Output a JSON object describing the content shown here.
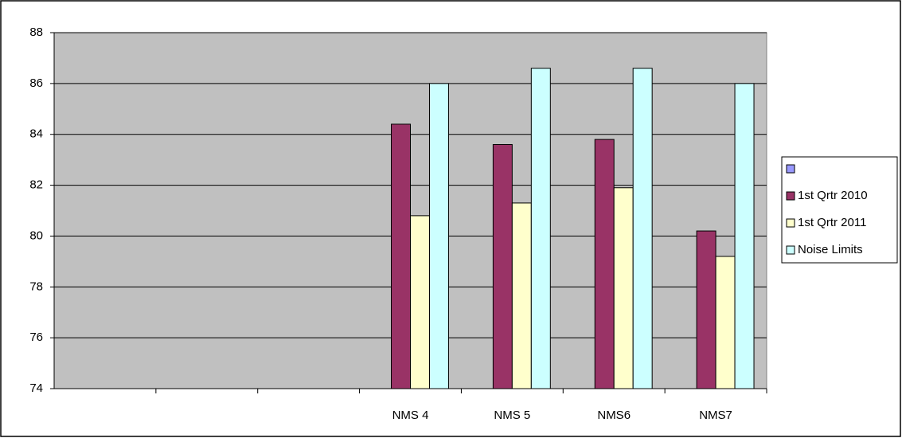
{
  "chart_data": {
    "type": "bar",
    "categories": [
      null,
      null,
      null,
      "NMS 4",
      "NMS 5",
      "NMS6",
      "NMS7"
    ],
    "series": [
      {
        "name": null,
        "color": "#9999ff",
        "values": [
          null,
          null,
          null,
          null,
          null,
          null,
          null
        ]
      },
      {
        "name": "1st Qrtr 2010",
        "color": "#993366",
        "values": [
          null,
          null,
          null,
          84.4,
          83.6,
          83.8,
          80.2
        ]
      },
      {
        "name": "1st Qrtr 2011",
        "color": "#ffffcc",
        "values": [
          null,
          null,
          null,
          80.8,
          81.3,
          81.9,
          79.2
        ]
      },
      {
        "name": "Noise Limits",
        "color": "#ccffff",
        "values": [
          null,
          null,
          null,
          86,
          86.6,
          86.6,
          86
        ]
      }
    ],
    "ylim": [
      74,
      88
    ],
    "yticks": [
      74,
      76,
      78,
      80,
      82,
      84,
      86,
      88
    ],
    "grid": true,
    "legend": "right",
    "plot_background": "#c0c0c0"
  }
}
